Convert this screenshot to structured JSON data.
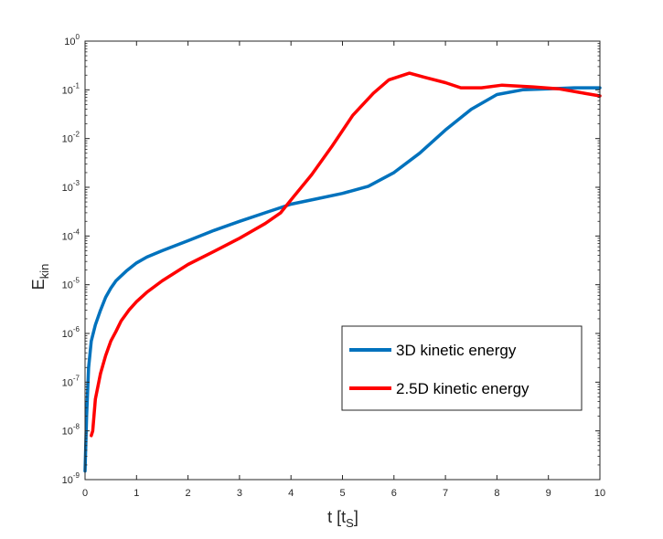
{
  "chart_data": {
    "type": "line",
    "xlabel": {
      "base": "t [t",
      "sub": "S",
      "end": "]"
    },
    "ylabel": {
      "base": "E",
      "sub": "kin"
    },
    "xlim": [
      0,
      10
    ],
    "ylim_log10": [
      -9,
      0
    ],
    "yscale": "log",
    "x_ticks": [
      "0",
      "1",
      "2",
      "3",
      "4",
      "5",
      "6",
      "7",
      "8",
      "9",
      "10"
    ],
    "y_ticks": [
      {
        "base": "10",
        "exp": "0"
      },
      {
        "base": "10",
        "exp": "-1"
      },
      {
        "base": "10",
        "exp": "-2"
      },
      {
        "base": "10",
        "exp": "-3"
      },
      {
        "base": "10",
        "exp": "-4"
      },
      {
        "base": "10",
        "exp": "-5"
      },
      {
        "base": "10",
        "exp": "-6"
      },
      {
        "base": "10",
        "exp": "-7"
      },
      {
        "base": "10",
        "exp": "-8"
      },
      {
        "base": "10",
        "exp": "-9"
      }
    ],
    "legend_position": "lower-right",
    "series": [
      {
        "name": "3D kinetic energy",
        "color": "#0072BD",
        "points": [
          [
            0.0,
            1.5e-09
          ],
          [
            0.03,
            2e-08
          ],
          [
            0.07,
            2e-07
          ],
          [
            0.12,
            7e-07
          ],
          [
            0.2,
            1.5e-06
          ],
          [
            0.3,
            3e-06
          ],
          [
            0.4,
            5.5e-06
          ],
          [
            0.5,
            8.5e-06
          ],
          [
            0.6,
            1.2e-05
          ],
          [
            0.8,
            1.9e-05
          ],
          [
            1.0,
            2.8e-05
          ],
          [
            1.2,
            3.7e-05
          ],
          [
            1.5,
            5e-05
          ],
          [
            2.0,
            8e-05
          ],
          [
            2.5,
            0.00013
          ],
          [
            3.0,
            0.0002
          ],
          [
            3.5,
            0.0003
          ],
          [
            4.0,
            0.00045
          ],
          [
            4.5,
            0.00058
          ],
          [
            5.0,
            0.00075
          ],
          [
            5.5,
            0.00105
          ],
          [
            6.0,
            0.002
          ],
          [
            6.5,
            0.005
          ],
          [
            7.0,
            0.015
          ],
          [
            7.5,
            0.04
          ],
          [
            8.0,
            0.08
          ],
          [
            8.5,
            0.1
          ],
          [
            9.0,
            0.105
          ],
          [
            9.5,
            0.11
          ],
          [
            10.0,
            0.11
          ]
        ]
      },
      {
        "name": "2.5D kinetic energy",
        "color": "#FF0000",
        "points": [
          [
            0.12,
            8e-09
          ],
          [
            0.15,
            1e-08
          ],
          [
            0.2,
            4.5e-08
          ],
          [
            0.3,
            1.5e-07
          ],
          [
            0.4,
            3.5e-07
          ],
          [
            0.5,
            7e-07
          ],
          [
            0.6,
            1.1e-06
          ],
          [
            0.7,
            1.8e-06
          ],
          [
            0.85,
            3e-06
          ],
          [
            1.0,
            4.5e-06
          ],
          [
            1.2,
            7e-06
          ],
          [
            1.5,
            1.2e-05
          ],
          [
            2.0,
            2.6e-05
          ],
          [
            2.5,
            4.8e-05
          ],
          [
            3.0,
            9e-05
          ],
          [
            3.5,
            0.00018
          ],
          [
            3.8,
            0.0003
          ],
          [
            4.0,
            0.00055
          ],
          [
            4.4,
            0.0018
          ],
          [
            4.8,
            0.007
          ],
          [
            5.2,
            0.03
          ],
          [
            5.6,
            0.085
          ],
          [
            5.9,
            0.16
          ],
          [
            6.3,
            0.22
          ],
          [
            6.6,
            0.18
          ],
          [
            7.0,
            0.14
          ],
          [
            7.3,
            0.11
          ],
          [
            7.7,
            0.11
          ],
          [
            8.1,
            0.125
          ],
          [
            8.7,
            0.115
          ],
          [
            9.2,
            0.105
          ],
          [
            9.7,
            0.085
          ],
          [
            10.0,
            0.075
          ]
        ]
      }
    ]
  }
}
